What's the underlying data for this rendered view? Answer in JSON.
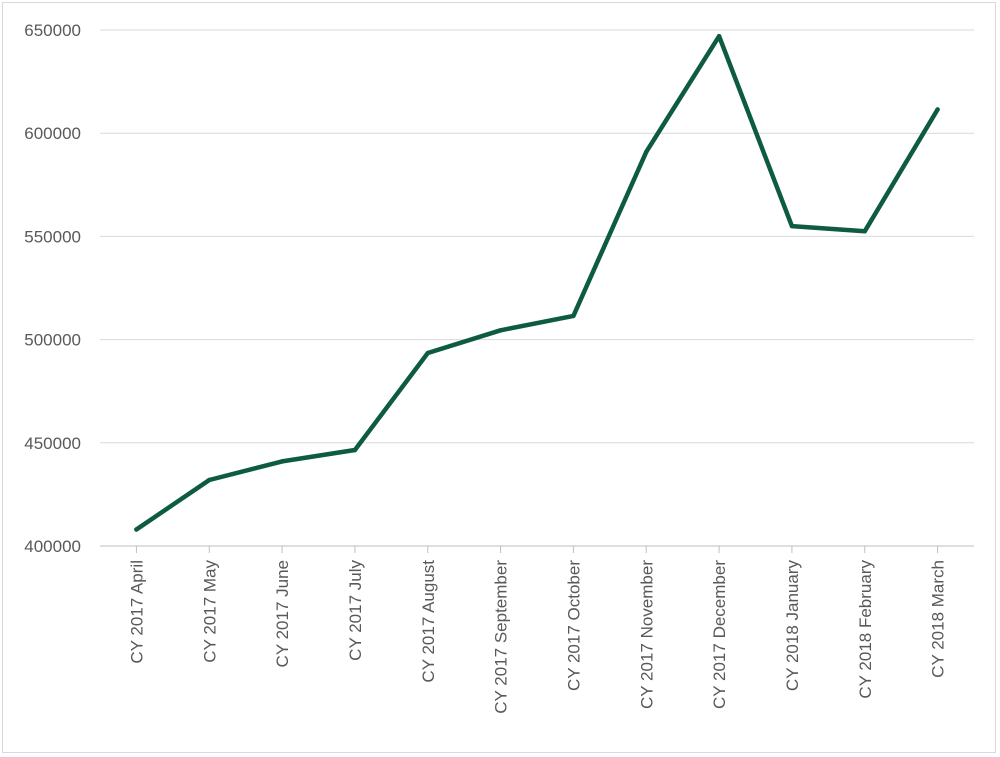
{
  "chart_data": {
    "type": "line",
    "title": "",
    "xlabel": "",
    "ylabel": "",
    "categories": [
      "CY 2017 April",
      "CY 2017 May",
      "CY 2017 June",
      "CY 2017 July",
      "CY 2017 August",
      "CY 2017 September",
      "CY 2017 October",
      "CY 2017 November",
      "CY 2017 December",
      "CY 2018 January",
      "CY 2018 February",
      "CY 2018 March"
    ],
    "series": [
      {
        "values": [
          408000,
          432000,
          441000,
          446500,
          493500,
          504500,
          511500,
          591000,
          647000,
          555000,
          552500,
          611500
        ]
      }
    ],
    "ylim": [
      400000,
      650000
    ],
    "yticks": [
      400000,
      450000,
      500000,
      550000,
      600000,
      650000
    ],
    "ytick_labels": [
      "400000",
      "450000",
      "500000",
      "550000",
      "600000",
      "650000"
    ],
    "grid": true,
    "legend": "none",
    "colors": {
      "line": "#0e5c3f",
      "grid": "#d9d9d9",
      "text": "#595959"
    }
  }
}
